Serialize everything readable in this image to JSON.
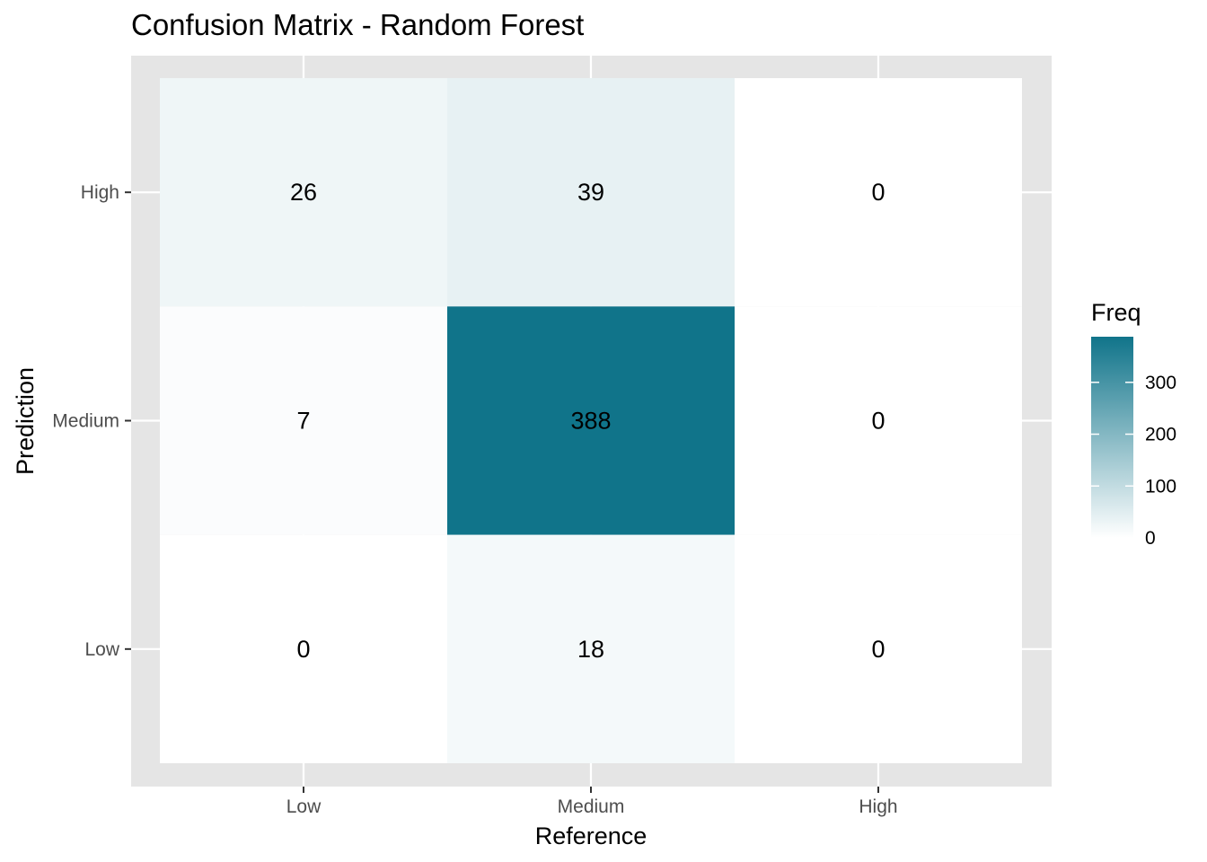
{
  "chart_data": {
    "type": "heatmap",
    "title": "Confusion Matrix - Random Forest",
    "xlabel": "Reference",
    "ylabel": "Prediction",
    "x_categories": [
      "Low",
      "Medium",
      "High"
    ],
    "y_categories": [
      "Low",
      "Medium",
      "High"
    ],
    "cells": [
      {
        "x": "Low",
        "y": "High",
        "value": 26
      },
      {
        "x": "Medium",
        "y": "High",
        "value": 39
      },
      {
        "x": "High",
        "y": "High",
        "value": 0
      },
      {
        "x": "Low",
        "y": "Medium",
        "value": 7
      },
      {
        "x": "Medium",
        "y": "Medium",
        "value": 388
      },
      {
        "x": "High",
        "y": "Medium",
        "value": 0
      },
      {
        "x": "Low",
        "y": "Low",
        "value": 0
      },
      {
        "x": "Medium",
        "y": "Low",
        "value": 18
      },
      {
        "x": "High",
        "y": "Low",
        "value": 0
      }
    ],
    "legend": {
      "title": "Freq",
      "ticks": [
        0,
        100,
        200,
        300
      ],
      "range": [
        0,
        388
      ],
      "low_color": "#ffffff",
      "high_color": "#10748a"
    },
    "panel_background": "#e5e5e5",
    "grid": true
  }
}
